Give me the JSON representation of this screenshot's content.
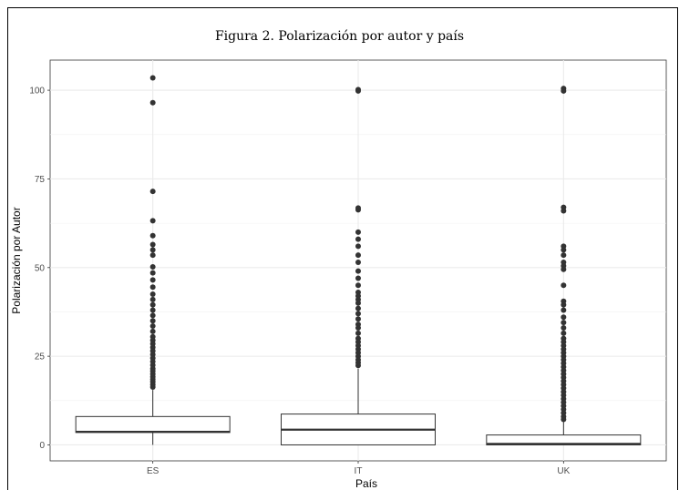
{
  "chart_data": {
    "type": "box",
    "title": "Figura 2. Polarización por autor y país",
    "xlabel": "País",
    "ylabel": "Polarización por Autor",
    "ylim": [
      -4.5,
      108.5
    ],
    "yticks": [
      0,
      25,
      50,
      75,
      100
    ],
    "ytick_labels": [
      "0",
      "25",
      "50",
      "75",
      "100"
    ],
    "grid": true,
    "categories": [
      "ES",
      "IT",
      "UK"
    ],
    "boxes": [
      {
        "category": "ES",
        "q1": 3.5,
        "median": 3.7,
        "q3": 8.0,
        "whisker_low": 0,
        "whisker_high": 15.5,
        "outliers": [
          103.5,
          96.5,
          71.5,
          63.2,
          59.0,
          56.5,
          55.0,
          53.5,
          50.2,
          48.5,
          46.5,
          44.5,
          42.5,
          41.0,
          39.5,
          38.0,
          36.5,
          35.0,
          33.5,
          32.0,
          30.5,
          29.5,
          28.5,
          27.5,
          26.5,
          25.5,
          24.5,
          23.5,
          22.5,
          21.5,
          20.8,
          20.0,
          19.2,
          18.5,
          17.8,
          17.0,
          16.3
        ]
      },
      {
        "category": "IT",
        "q1": 0,
        "median": 4.3,
        "q3": 8.7,
        "whisker_low": 0,
        "whisker_high": 21.5,
        "outliers": [
          100.2,
          99.8,
          66.8,
          66.3,
          60.0,
          58.0,
          56.0,
          53.5,
          51.5,
          49.0,
          47.0,
          45.0,
          43.0,
          42.0,
          41.0,
          40.0,
          38.5,
          37.0,
          35.5,
          34.0,
          33.0,
          31.5,
          30.0,
          29.0,
          28.0,
          27.0,
          26.0,
          25.0,
          24.0,
          23.2,
          22.4
        ]
      },
      {
        "category": "UK",
        "q1": 0,
        "median": 0.3,
        "q3": 2.8,
        "whisker_low": 0,
        "whisker_high": 6.5,
        "outliers": [
          100.5,
          99.8,
          67.0,
          66.0,
          56.0,
          55.0,
          53.5,
          51.5,
          50.5,
          49.5,
          45.0,
          40.5,
          39.5,
          38.0,
          36.0,
          34.5,
          33.0,
          31.5,
          30.0,
          29.0,
          28.0,
          27.0,
          26.0,
          25.0,
          24.0,
          23.0,
          22.0,
          21.0,
          20.0,
          19.0,
          18.0,
          17.0,
          16.0,
          15.0,
          14.0,
          13.0,
          12.0,
          11.0,
          10.0,
          9.0,
          8.0,
          7.2
        ]
      }
    ]
  }
}
